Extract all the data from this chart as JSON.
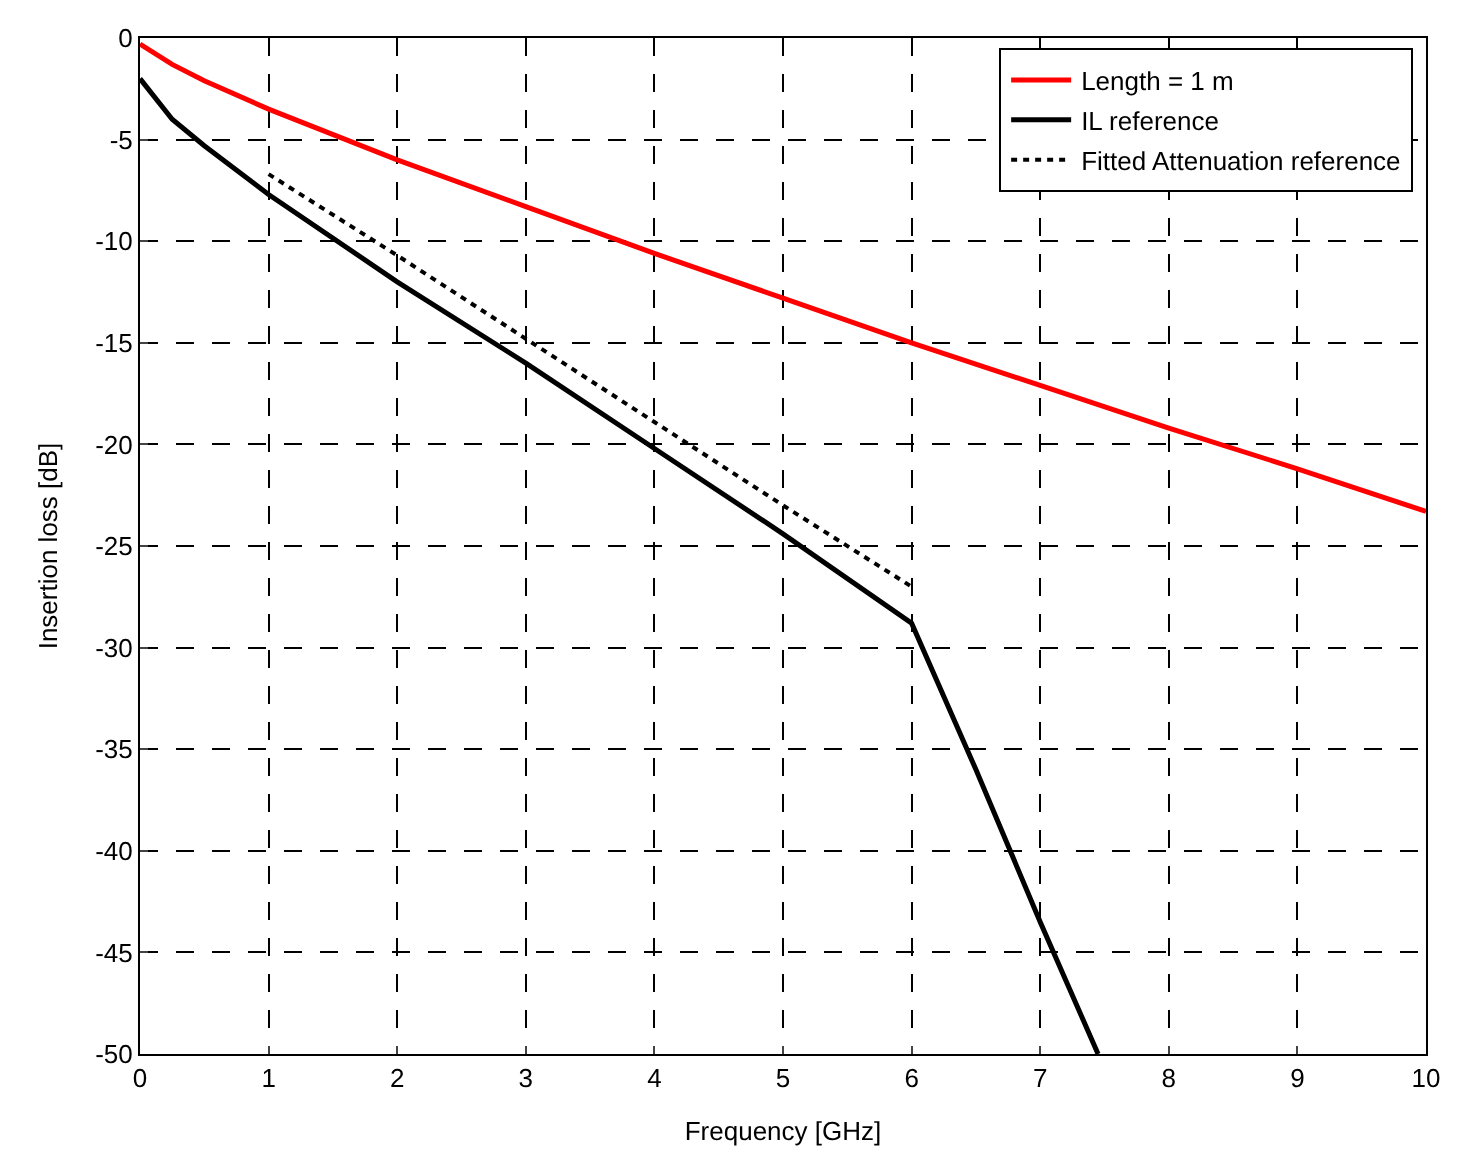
{
  "chart_data": {
    "type": "line",
    "xlabel": "Frequency [GHz]",
    "ylabel": "Insertion loss [dB]",
    "xlim": [
      0,
      10
    ],
    "ylim": [
      -50,
      0
    ],
    "xticks": [
      0,
      1,
      2,
      3,
      4,
      5,
      6,
      7,
      8,
      9,
      10
    ],
    "yticks": [
      -50,
      -45,
      -40,
      -35,
      -30,
      -25,
      -20,
      -15,
      -10,
      -5,
      0
    ],
    "grid": true,
    "legend": "top right",
    "series": [
      {
        "name": "Length = 1 m",
        "color": "#ff0000",
        "line_style": "solid",
        "x": [
          0,
          0.25,
          0.5,
          1,
          2,
          3,
          4,
          5,
          6,
          7,
          8,
          9,
          10
        ],
        "values": [
          -0.3,
          -1.3,
          -2.1,
          -3.5,
          -6,
          -8.3,
          -10.6,
          -12.8,
          -15,
          -17.1,
          -19.2,
          -21.2,
          -23.3
        ]
      },
      {
        "name": "IL reference",
        "color": "#000000",
        "line_style": "solid",
        "x": [
          0,
          0.25,
          0.5,
          1,
          2,
          3,
          4,
          5,
          6,
          6.5,
          7,
          7.45
        ],
        "values": [
          -2,
          -4,
          -5.3,
          -7.7,
          -12,
          -16,
          -20.2,
          -24.4,
          -28.8,
          -36,
          -43.5,
          -50
        ]
      },
      {
        "name": "Fitted Attenuation reference",
        "color": "#000000",
        "line_style": "dotted",
        "x": [
          1,
          2,
          3,
          4,
          5,
          6
        ],
        "values": [
          -6.7,
          -10.7,
          -14.8,
          -18.9,
          -23,
          -27
        ]
      }
    ]
  }
}
